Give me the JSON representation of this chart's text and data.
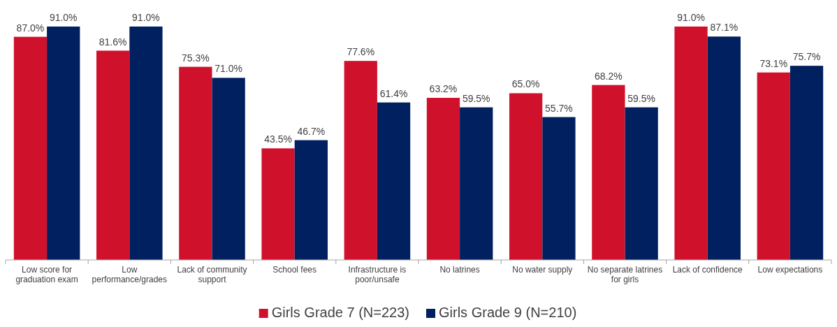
{
  "chart_data": {
    "type": "bar",
    "categories": [
      "Low score for graduation exam",
      "Low performance/grades",
      "Lack of community support",
      "School fees",
      "Infrastructure is poor/unsafe",
      "No latrines",
      "No water supply",
      "No separate latrines for girls",
      "Lack of confidence",
      "Low expectations"
    ],
    "series": [
      {
        "name": "Girls Grade 7 (N=223)",
        "color": "#d0112b",
        "values": [
          87.0,
          81.6,
          75.3,
          43.5,
          77.6,
          63.2,
          65.0,
          68.2,
          91.0,
          73.1
        ],
        "value_labels": [
          "87.0%",
          "81.6%",
          "75.3%",
          "43.5%",
          "77.6%",
          "63.2%",
          "65.0%",
          "68.2%",
          "91.0%",
          "73.1%"
        ]
      },
      {
        "name": "Girls Grade 9 (N=210)",
        "color": "#002060",
        "values": [
          91.0,
          91.0,
          71.0,
          46.7,
          61.4,
          59.5,
          55.7,
          59.5,
          87.1,
          75.7
        ],
        "value_labels": [
          "91.0%",
          "91.0%",
          "71.0%",
          "46.7%",
          "61.4%",
          "59.5%",
          "55.7%",
          "59.5%",
          "87.1%",
          "75.7%"
        ]
      }
    ],
    "tick_labels": "x",
    "legend": "bottom"
  }
}
